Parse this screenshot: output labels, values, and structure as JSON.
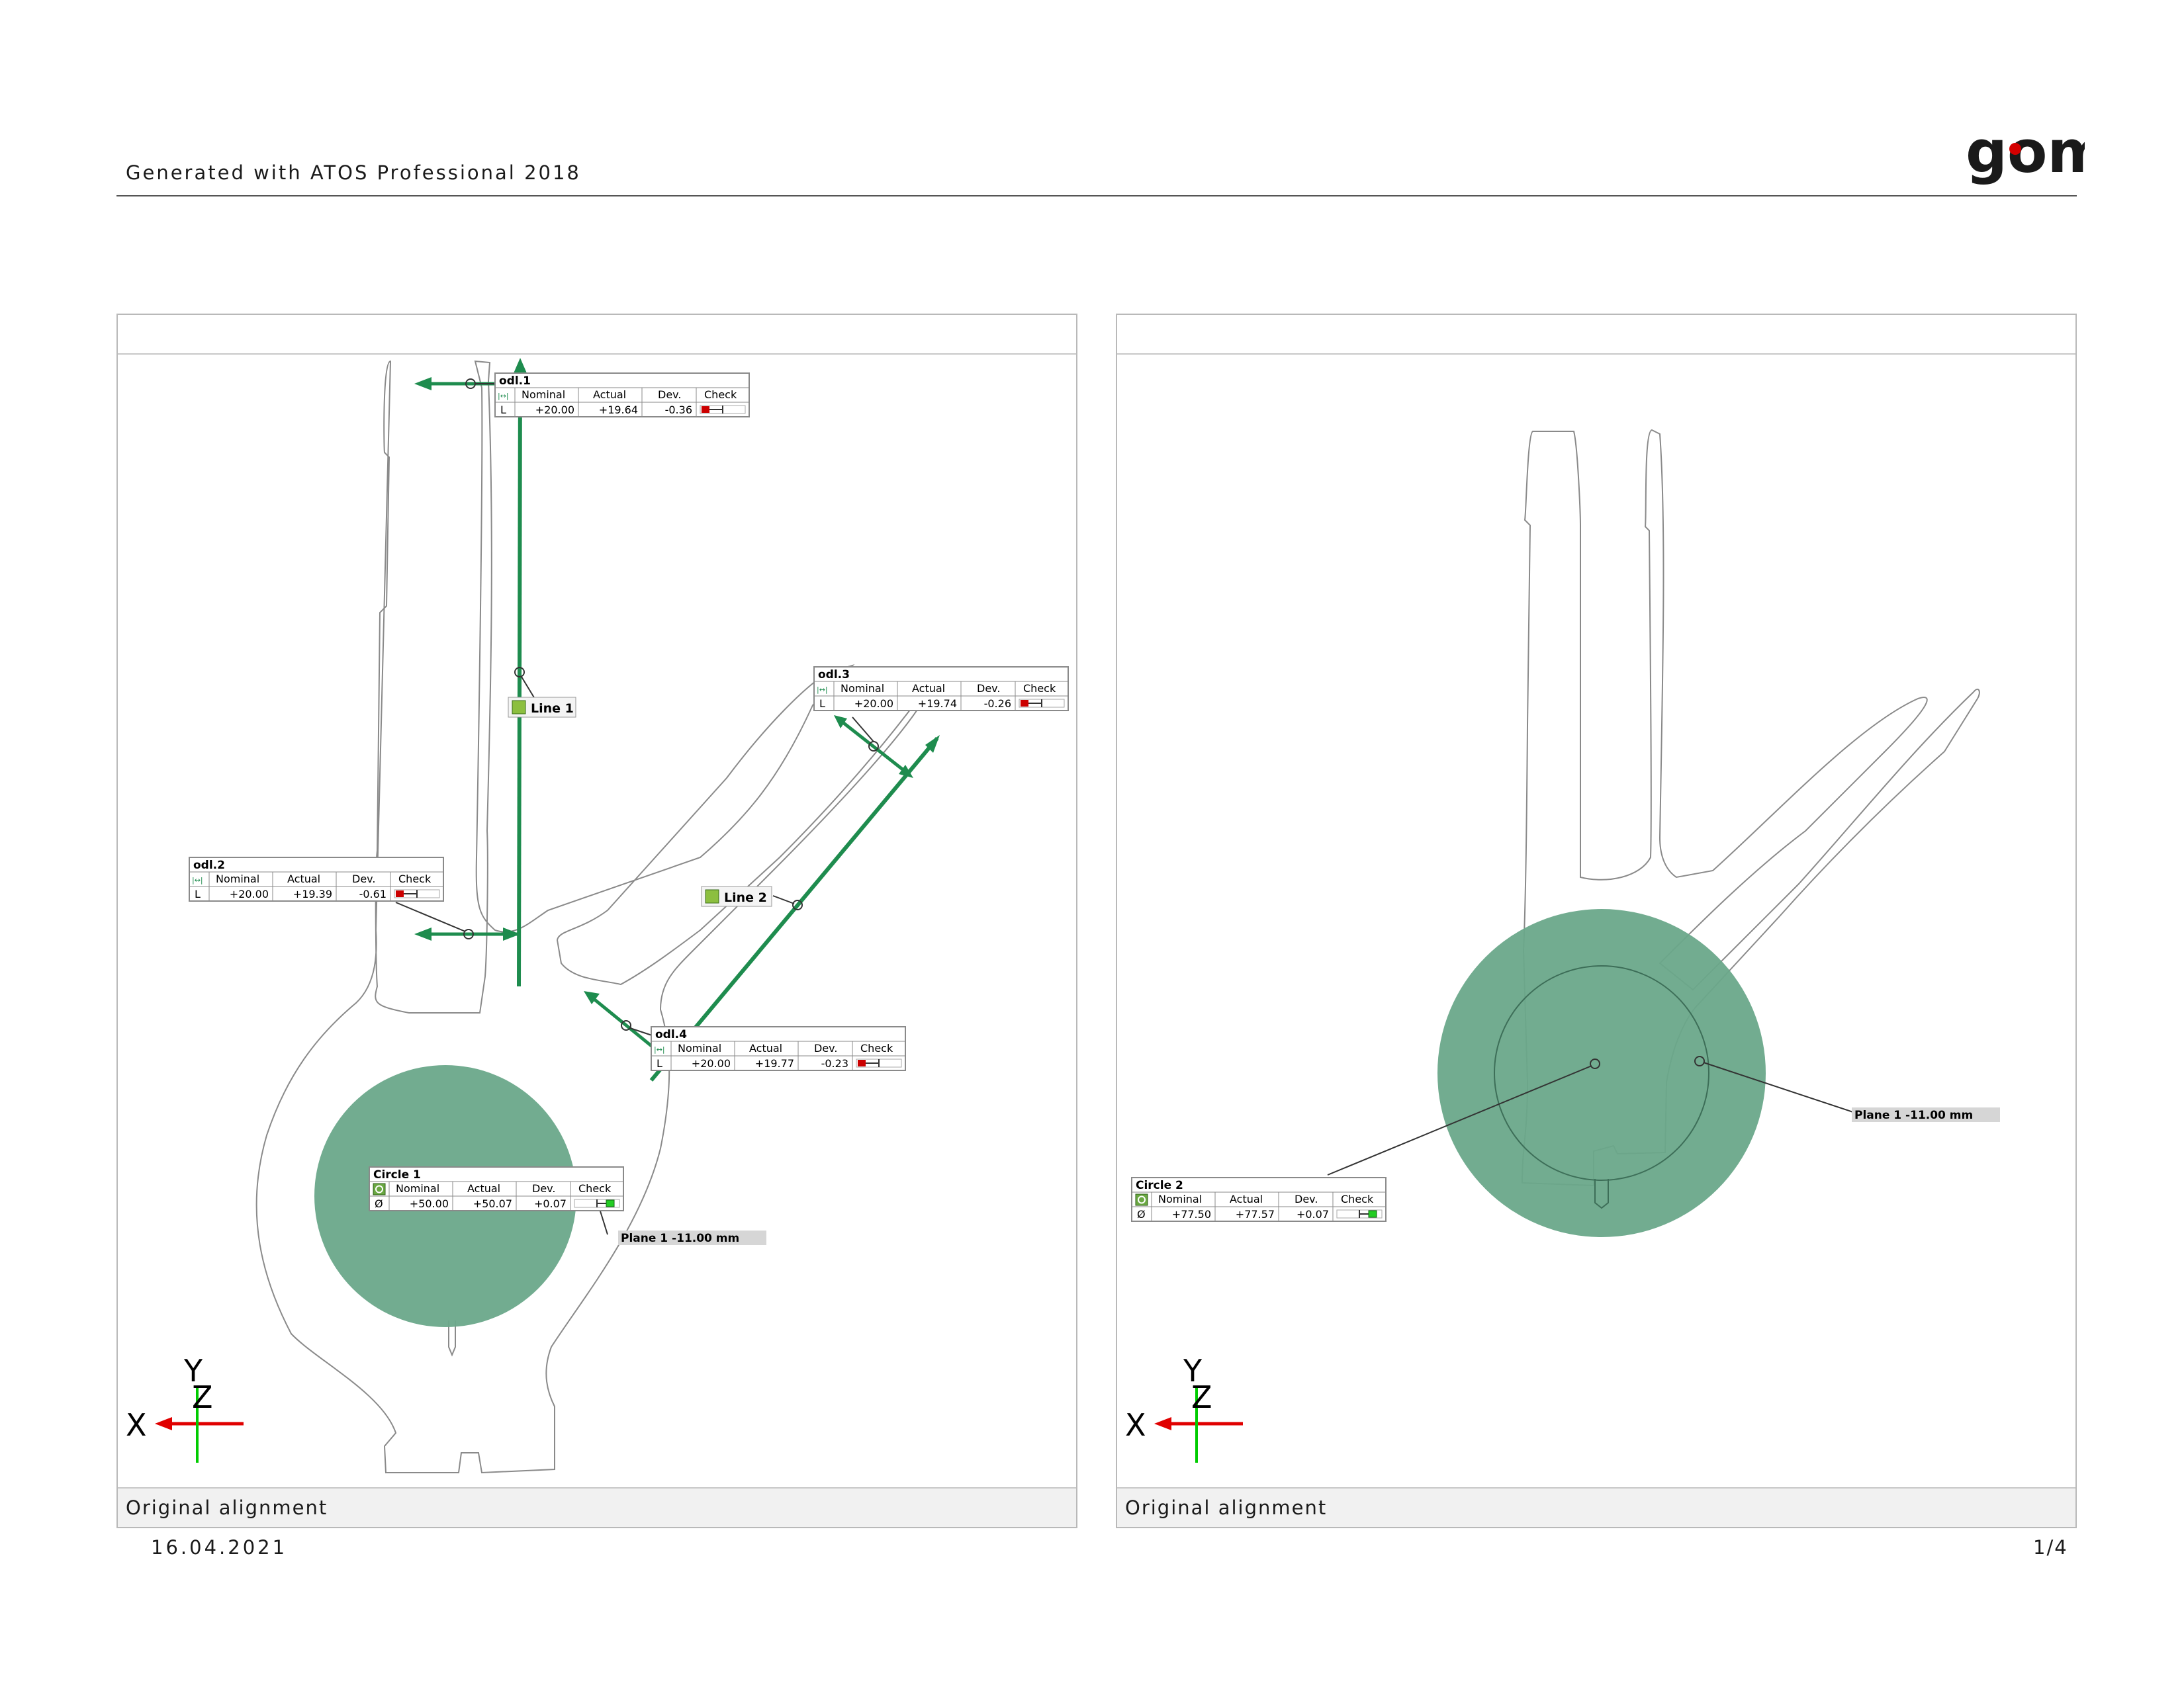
{
  "header": {
    "generated_with": "Generated with ATOS Professional 2018",
    "logo_text": "gom"
  },
  "colors": {
    "measure_green": "#1e8c4e",
    "fit_fill": "#6aa88a",
    "fail_red": "#cc0000",
    "pass_green": "#22cc22",
    "axis_x_red": "#e00000",
    "axis_y_green": "#00cc00"
  },
  "table_headers": {
    "nominal": "Nominal",
    "actual": "Actual",
    "dev": "Dev.",
    "check": "Check"
  },
  "views": [
    {
      "footer": "Original alignment",
      "axes": {
        "x": "X",
        "y": "Y",
        "z": "Z"
      },
      "labels": {
        "line1": "Line 1",
        "line2": "Line 2",
        "plane": "Plane 1 -11.00 mm"
      },
      "tables": [
        {
          "name": "odl.1",
          "symbol": "|↔|",
          "row_symbol": "L",
          "nominal": "+20.00",
          "actual": "+19.64",
          "dev": "-0.36",
          "check": "fail"
        },
        {
          "name": "odl.2",
          "symbol": "|↔|",
          "row_symbol": "L",
          "nominal": "+20.00",
          "actual": "+19.39",
          "dev": "-0.61",
          "check": "fail"
        },
        {
          "name": "odl.3",
          "symbol": "|↔|",
          "row_symbol": "L",
          "nominal": "+20.00",
          "actual": "+19.74",
          "dev": "-0.26",
          "check": "fail"
        },
        {
          "name": "odl.4",
          "symbol": "|↔|",
          "row_symbol": "L",
          "nominal": "+20.00",
          "actual": "+19.77",
          "dev": "-0.23",
          "check": "fail"
        },
        {
          "name": "Circle 1",
          "symbol": "circle-icon",
          "row_symbol": "Ø",
          "nominal": "+50.00",
          "actual": "+50.07",
          "dev": "+0.07",
          "check": "pass"
        }
      ]
    },
    {
      "footer": "Original alignment",
      "axes": {
        "x": "X",
        "y": "Y",
        "z": "Z"
      },
      "labels": {
        "plane": "Plane 1 -11.00 mm"
      },
      "tables": [
        {
          "name": "Circle 2",
          "symbol": "circle-icon",
          "row_symbol": "Ø",
          "nominal": "+77.50",
          "actual": "+77.57",
          "dev": "+0.07",
          "check": "pass"
        }
      ]
    }
  ],
  "footer": {
    "date": "16.04.2021",
    "page": "1/4"
  }
}
